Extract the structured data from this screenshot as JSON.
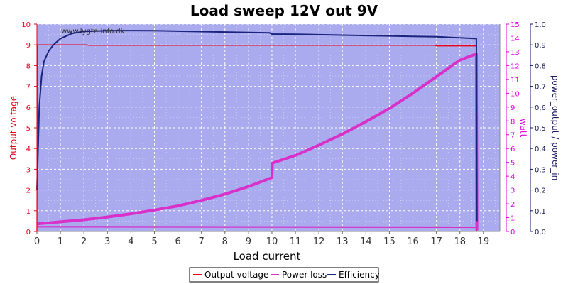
{
  "chart_data": {
    "type": "line",
    "title": "Load sweep 12V out 9V",
    "xlabel": "Load current",
    "watermark": "www.lygte-info.dk",
    "xlim": [
      0,
      19.7
    ],
    "xticks": [
      "0",
      "1",
      "2",
      "3",
      "4",
      "5",
      "6",
      "7",
      "8",
      "9",
      "10",
      "11",
      "12",
      "13",
      "14",
      "15",
      "16",
      "17",
      "18",
      "19"
    ],
    "y_left": {
      "label": "Output voltage",
      "lim": [
        0,
        10
      ],
      "ticks": [
        "0",
        "1",
        "2",
        "3",
        "4",
        "5",
        "6",
        "7",
        "8",
        "9",
        "10"
      ],
      "color": "#e8001c"
    },
    "y_right1": {
      "label": "watt",
      "lim": [
        0,
        15
      ],
      "ticks": [
        "0",
        "1",
        "2",
        "3",
        "4",
        "5",
        "6",
        "7",
        "8",
        "9",
        "10",
        "11",
        "12",
        "13",
        "14",
        "15"
      ],
      "color": "#e000e0"
    },
    "y_right2": {
      "label": "power_output / power_in",
      "lim": [
        0,
        1
      ],
      "ticks": [
        "0,0",
        "0,1",
        "0,2",
        "0,3",
        "0,4",
        "0,5",
        "0,6",
        "0,7",
        "0,8",
        "0,9",
        "1,0"
      ],
      "color": "#1a1a5e"
    },
    "grid": true,
    "legend_position": "bottom-center",
    "colors": {
      "plot_bg": "#aaaaee",
      "grid": "#ffffff",
      "voltage": "#e8001c",
      "power_loss": "#d830c8",
      "efficiency": "#1a237e"
    },
    "series": [
      {
        "name": "Output voltage",
        "axis": "y_left",
        "x": [
          0,
          0.02,
          2.1,
          2.2,
          16.9,
          17.0,
          18.7,
          18.72
        ],
        "y": [
          0,
          9.0,
          9.0,
          8.98,
          8.98,
          8.95,
          8.95,
          0
        ]
      },
      {
        "name": "Power loss",
        "axis": "y_right1",
        "x": [
          0,
          1,
          2,
          3,
          4,
          5,
          6,
          7,
          8,
          9,
          10,
          10.02,
          11,
          12,
          13,
          14,
          15,
          16,
          17,
          18,
          18.7,
          18.72
        ],
        "y": [
          0.55,
          0.7,
          0.85,
          1.05,
          1.28,
          1.55,
          1.85,
          2.25,
          2.7,
          3.25,
          3.9,
          4.95,
          5.5,
          6.25,
          7.05,
          7.95,
          8.9,
          10.0,
          11.2,
          12.4,
          12.85,
          0.1
        ]
      },
      {
        "name": "Power loss baseline",
        "axis": "y_right1",
        "x": [
          0,
          18.7
        ],
        "y": [
          0.32,
          0.28
        ]
      },
      {
        "name": "Efficiency",
        "axis": "y_right2",
        "x": [
          0,
          0.1,
          0.2,
          0.3,
          0.5,
          0.7,
          1.0,
          1.5,
          2.0,
          3.0,
          4.0,
          5.0,
          6.0,
          7.0,
          8.0,
          9.0,
          9.9,
          10.0,
          11.0,
          12.0,
          13.0,
          14.0,
          15.0,
          16.0,
          17.0,
          18.0,
          18.7,
          18.72
        ],
        "y": [
          0.2,
          0.6,
          0.75,
          0.82,
          0.87,
          0.9,
          0.93,
          0.955,
          0.965,
          0.968,
          0.969,
          0.968,
          0.966,
          0.964,
          0.962,
          0.96,
          0.958,
          0.952,
          0.951,
          0.949,
          0.947,
          0.945,
          0.943,
          0.941,
          0.939,
          0.934,
          0.93,
          0.05
        ]
      }
    ]
  }
}
